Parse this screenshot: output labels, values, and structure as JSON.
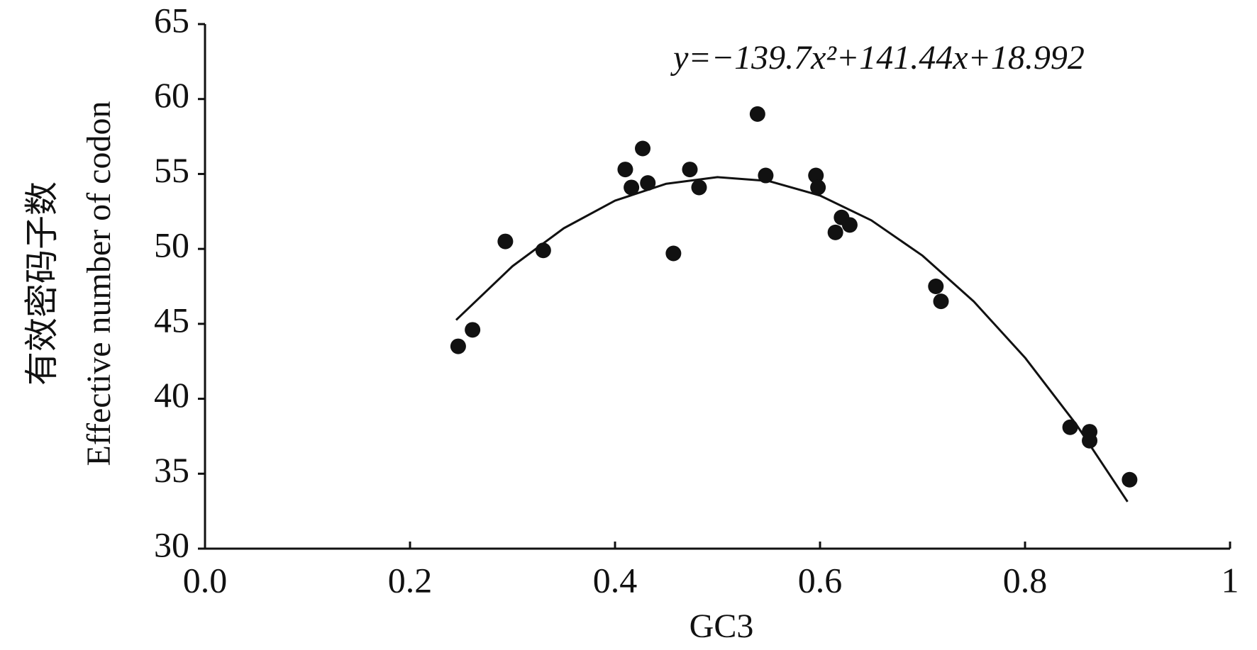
{
  "chart_data": {
    "type": "scatter",
    "x_label": "GC3",
    "y_label": [
      "有效密码子数",
      "Effective number of codon"
    ],
    "annotation": "y=−139.7x²+141.44x+18.992",
    "xlim": [
      0,
      1
    ],
    "xticks": [
      {
        "value": 0,
        "label": "0.0"
      },
      0.2,
      0.4,
      0.6,
      0.8,
      1
    ],
    "ylim": [
      30,
      65
    ],
    "yticks": [
      30,
      35,
      40,
      45,
      50,
      55,
      60,
      65
    ],
    "color": "#111111",
    "series": [
      {
        "x": [
          0.247,
          0.261,
          0.293,
          0.33,
          0.41,
          0.416,
          0.427,
          0.432,
          0.457,
          0.473,
          0.482,
          0.539,
          0.547,
          0.596,
          0.598,
          0.615,
          0.621,
          0.629,
          0.713,
          0.718,
          0.844,
          0.863,
          0.863,
          0.902
        ],
        "values": [
          43.5,
          44.6,
          50.5,
          49.9,
          55.3,
          54.1,
          56.7,
          54.4,
          49.7,
          55.3,
          54.1,
          59.0,
          54.9,
          54.9,
          54.1,
          51.1,
          52.1,
          51.6,
          47.5,
          46.5,
          38.1,
          37.8,
          37.2,
          34.6
        ]
      }
    ],
    "fit": {
      "x": [
        0.245,
        0.3,
        0.35,
        0.4,
        0.45,
        0.5,
        0.55,
        0.6,
        0.65,
        0.7,
        0.75,
        0.8,
        0.85,
        0.9
      ],
      "values": [
        45.26,
        48.85,
        51.38,
        53.22,
        54.35,
        54.79,
        54.53,
        53.56,
        51.91,
        49.55,
        46.49,
        42.74,
        38.28,
        33.13
      ]
    }
  }
}
